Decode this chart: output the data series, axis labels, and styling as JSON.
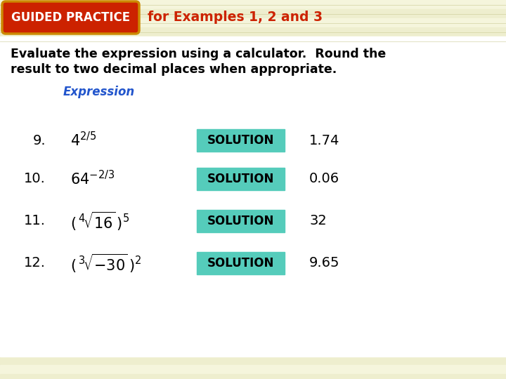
{
  "fig_width": 7.2,
  "fig_height": 5.4,
  "dpi": 100,
  "bg_color": "#fffff5",
  "stripe_color1": "#f5f5dc",
  "stripe_color2": "#eeeece",
  "white_content_color": "#ffffff",
  "guided_practice_bg": "#cc2200",
  "guided_practice_border": "#cc8800",
  "guided_practice_text": "GUIDED PRACTICE",
  "guided_practice_text_color": "#ffffff",
  "for_examples_text": "for Examples 1, 2 and 3",
  "for_examples_color": "#cc2200",
  "main_text_line1": "Evaluate the expression using a calculator.  Round the",
  "main_text_line2": "result to two decimal places when appropriate.",
  "main_text_color": "#000000",
  "expression_label": "Expression",
  "expression_label_color": "#2255cc",
  "solution_bg": "#55ccbb",
  "solution_text": "SOLUTION",
  "solution_text_color": "#000000",
  "nums": [
    "9.",
    "10.",
    "11.",
    "12."
  ],
  "answers": [
    "1.74",
    "0.06",
    "32",
    "9.65"
  ]
}
